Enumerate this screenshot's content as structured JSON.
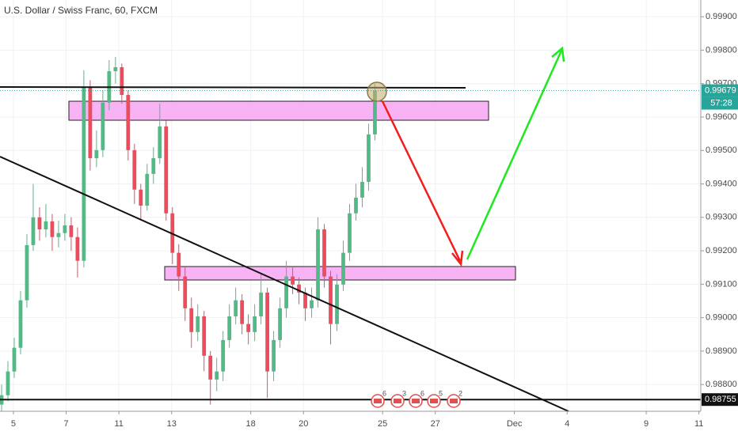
{
  "chart_data": {
    "type": "candlestick",
    "title": "U.S. Dollar / Swiss Franc, 60, FXCM",
    "up_color": "#53b987",
    "down_color": "#eb4d5c",
    "grid": true,
    "ylim": [
      0.9872,
      0.9995
    ],
    "yticks": [
      {
        "value": 0.999,
        "label": "0.99900"
      },
      {
        "value": 0.998,
        "label": "0.99800"
      },
      {
        "value": 0.997,
        "label": "0.99700"
      },
      {
        "value": 0.996,
        "label": "0.99600"
      },
      {
        "value": 0.995,
        "label": "0.99500"
      },
      {
        "value": 0.994,
        "label": "0.99400"
      },
      {
        "value": 0.993,
        "label": "0.99300"
      },
      {
        "value": 0.992,
        "label": "0.99200"
      },
      {
        "value": 0.991,
        "label": "0.99100"
      },
      {
        "value": 0.99,
        "label": "0.99000"
      },
      {
        "value": 0.989,
        "label": "0.98900"
      },
      {
        "value": 0.988,
        "label": "0.98800"
      }
    ],
    "xlim": [
      -0.51,
      26.07
    ],
    "xticks": [
      {
        "value": 0,
        "label": "5"
      },
      {
        "value": 2,
        "label": "7"
      },
      {
        "value": 4,
        "label": "11"
      },
      {
        "value": 6,
        "label": "13"
      },
      {
        "value": 9,
        "label": "18"
      },
      {
        "value": 11,
        "label": "20"
      },
      {
        "value": 14,
        "label": "25"
      },
      {
        "value": 16,
        "label": "27"
      },
      {
        "value": 19,
        "label": "Dec"
      },
      {
        "value": 21,
        "label": "4"
      },
      {
        "value": 24,
        "label": "9"
      },
      {
        "value": 26,
        "label": "11"
      }
    ],
    "x": [
      -0.45,
      -0.21,
      0.03,
      0.27,
      0.51,
      0.75,
      0.99,
      1.23,
      1.47,
      1.71,
      1.95,
      2.19,
      2.43,
      2.67,
      2.91,
      3.15,
      3.39,
      3.63,
      3.87,
      4.11,
      4.35,
      4.59,
      4.83,
      5.07,
      5.31,
      5.55,
      5.79,
      6.03,
      6.27,
      6.51,
      6.75,
      6.99,
      7.23,
      7.47,
      7.71,
      7.95,
      8.19,
      8.43,
      8.67,
      8.91,
      9.15,
      9.39,
      9.63,
      9.87,
      10.11,
      10.35,
      10.59,
      10.83,
      11.07,
      11.31,
      11.55,
      11.79,
      12.03,
      12.27,
      12.51,
      12.75,
      12.99,
      13.23,
      13.47,
      13.71
    ],
    "open": [
      0.9874,
      0.98768,
      0.98839,
      0.9891,
      0.99052,
      0.99217,
      0.993,
      0.99264,
      0.99288,
      0.99241,
      0.99253,
      0.99276,
      0.99241,
      0.9917,
      0.9969,
      0.99477,
      0.99501,
      0.99643,
      0.99737,
      0.99749,
      0.99666,
      0.99501,
      0.99383,
      0.99335,
      0.9943,
      0.99477,
      0.99572,
      0.99312,
      0.99194,
      0.99123,
      0.99028,
      0.98957,
      0.99004,
      0.98886,
      0.98815,
      0.98839,
      0.98933,
      0.99004,
      0.99052,
      0.98981,
      0.98957,
      0.99004,
      0.99075,
      0.98839,
      0.98933,
      0.99028,
      0.99123,
      0.99099,
      0.99075,
      0.99028,
      0.99052,
      0.99264,
      0.99123,
      0.98981,
      0.99099,
      0.99194,
      0.99312,
      0.99359,
      0.99406,
      0.99548
    ],
    "high": [
      0.988,
      0.9887,
      0.9894,
      0.9908,
      0.9925,
      0.994,
      0.9933,
      0.9934,
      0.9931,
      0.9929,
      0.9931,
      0.993,
      0.9927,
      0.9974,
      0.9971,
      0.9956,
      0.9968,
      0.9977,
      0.9978,
      0.9976,
      0.9968,
      0.9952,
      0.994,
      0.9946,
      0.9951,
      0.9964,
      0.9959,
      0.9933,
      0.9922,
      0.9915,
      0.9906,
      0.9904,
      0.9902,
      0.989,
      0.9888,
      0.9896,
      0.9904,
      0.9909,
      0.9907,
      0.9901,
      0.9904,
      0.9913,
      0.9909,
      0.9896,
      0.9906,
      0.9917,
      0.9915,
      0.9912,
      0.9909,
      0.9909,
      0.993,
      0.9928,
      0.9914,
      0.9913,
      0.9923,
      0.9934,
      0.994,
      0.9945,
      0.9958,
      0.997
    ],
    "low": [
      0.9872,
      0.9875,
      0.9882,
      0.9889,
      0.9903,
      0.992,
      0.9923,
      0.9924,
      0.992,
      0.9921,
      0.9923,
      0.992,
      0.9912,
      0.9915,
      0.9944,
      0.9945,
      0.9948,
      0.9962,
      0.997,
      0.9964,
      0.9947,
      0.9934,
      0.9929,
      0.9932,
      0.994,
      0.9946,
      0.9929,
      0.9916,
      0.9908,
      0.9899,
      0.9891,
      0.9893,
      0.9884,
      0.9874,
      0.9878,
      0.9881,
      0.9891,
      0.9898,
      0.9895,
      0.9892,
      0.9893,
      0.9898,
      0.9876,
      0.9881,
      0.9891,
      0.99,
      0.9907,
      0.9904,
      0.9899,
      0.99,
      0.9903,
      0.9909,
      0.9892,
      0.9896,
      0.9908,
      0.9917,
      0.9929,
      0.9933,
      0.9938,
      0.9953
    ],
    "close": [
      0.98768,
      0.98839,
      0.9891,
      0.99052,
      0.99217,
      0.993,
      0.99264,
      0.99288,
      0.99241,
      0.99253,
      0.99276,
      0.99241,
      0.9917,
      0.9969,
      0.99477,
      0.99501,
      0.99643,
      0.99737,
      0.99749,
      0.99666,
      0.99501,
      0.99383,
      0.99335,
      0.9943,
      0.99477,
      0.99572,
      0.99312,
      0.99194,
      0.99123,
      0.99028,
      0.98957,
      0.99004,
      0.98886,
      0.98815,
      0.98839,
      0.98933,
      0.99004,
      0.99052,
      0.98981,
      0.98957,
      0.99004,
      0.99075,
      0.98839,
      0.98933,
      0.99028,
      0.99123,
      0.99099,
      0.99075,
      0.99028,
      0.99052,
      0.99264,
      0.99123,
      0.98981,
      0.99099,
      0.99194,
      0.99312,
      0.99359,
      0.99406,
      0.99548,
      0.99679
    ],
    "last_price": 0.99679,
    "countdown": "57:28",
    "support_line": 0.98755,
    "events": [
      "6",
      "3",
      "6",
      "5",
      "2"
    ]
  }
}
